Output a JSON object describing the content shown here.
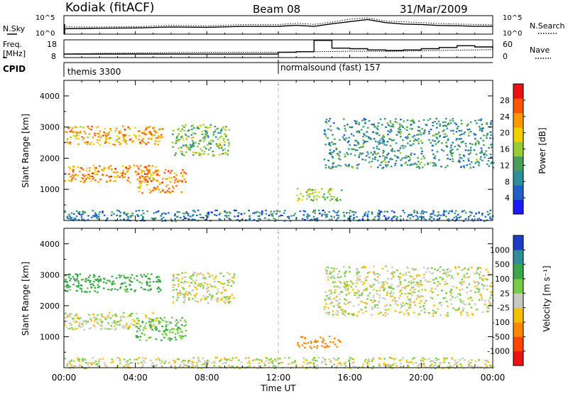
{
  "header": {
    "radar": "Kodiak (fitACF)",
    "beam": "Beam 08",
    "date": "31/Mar/2009"
  },
  "noise_panel": {
    "left_label": "N.Sky",
    "right_label": "N.Search",
    "left_ticks": [
      "10^5",
      "10^0"
    ],
    "right_ticks": [
      "10^5",
      "10^0"
    ]
  },
  "freq_panel": {
    "left_label_1": "Freq.",
    "left_label_2": "[MHz]",
    "right_label": "Nave",
    "left_ticks": [
      "18",
      "8"
    ],
    "right_ticks": [
      "60",
      "0"
    ]
  },
  "cpid": {
    "label": "CPID",
    "segments": [
      {
        "name": "themis 3300",
        "start_hour": 0
      },
      {
        "name": "normalsound (fast) 157",
        "start_hour": 12
      }
    ]
  },
  "time_axis": {
    "label": "Time UT",
    "ticks": [
      "00:00",
      "04:00",
      "08:00",
      "12:00",
      "16:00",
      "20:00",
      "00:00"
    ]
  },
  "range_axis": {
    "label": "Slant Range [km]",
    "ticks": [
      "1000",
      "2000",
      "3000",
      "4000"
    ]
  },
  "power_colorbar": {
    "label": "Power [dB]",
    "ticks": [
      "4",
      "8",
      "12",
      "16",
      "20",
      "24",
      "28"
    ],
    "colors": [
      "#1a1aff",
      "#2060c8",
      "#2e8f9a",
      "#4a9e5a",
      "#99cc33",
      "#f0d000",
      "#ff9900",
      "#ff5500",
      "#ee1111"
    ]
  },
  "velocity_colorbar": {
    "label": "Velocity [m s⁻¹]",
    "ticks": [
      "1000",
      "500",
      "100",
      "25",
      "-25",
      "-100",
      "-500",
      "-1000"
    ],
    "colors": [
      "#1a3cc8",
      "#2e8f9a",
      "#3aa84a",
      "#77cc44",
      "#c8c8c0",
      "#f5c000",
      "#ff8800",
      "#ff4400",
      "#ee1111"
    ]
  },
  "chart_data": {
    "type": "heatmap",
    "x_unit": "hours UT",
    "xlim": [
      0,
      24
    ],
    "ylim": [
      0,
      4500
    ],
    "noise_sky_trace": [
      [
        0,
        1.0
      ],
      [
        2,
        1.0
      ],
      [
        4,
        1.0
      ],
      [
        6,
        1.2
      ],
      [
        8,
        1.2
      ],
      [
        10,
        1.3
      ],
      [
        12,
        1.3
      ],
      [
        13,
        1.5
      ],
      [
        14,
        1.4
      ],
      [
        15,
        1.8
      ],
      [
        16,
        2.2
      ],
      [
        17,
        2.6
      ],
      [
        18,
        2.0
      ],
      [
        19,
        1.8
      ],
      [
        20,
        1.6
      ],
      [
        21,
        1.5
      ],
      [
        22,
        1.5
      ],
      [
        23,
        1.4
      ],
      [
        24,
        1.4
      ]
    ],
    "frequency_trace_mhz": [
      [
        0,
        10.0
      ],
      [
        2,
        10.4
      ],
      [
        4,
        10.6
      ],
      [
        6,
        10.8
      ],
      [
        8,
        11.0
      ],
      [
        10,
        11.0
      ],
      [
        12,
        11.0
      ],
      [
        14,
        11.3
      ],
      [
        16,
        11.6
      ],
      [
        18,
        11.5
      ],
      [
        20,
        11.8
      ],
      [
        22,
        12.2
      ],
      [
        24,
        12.5
      ]
    ],
    "nave_trace": [
      [
        0,
        12
      ],
      [
        10,
        12
      ],
      [
        12,
        18
      ],
      [
        13,
        20
      ],
      [
        14,
        58
      ],
      [
        15,
        32
      ],
      [
        16,
        30
      ],
      [
        17,
        26
      ],
      [
        18,
        24
      ],
      [
        19,
        26
      ],
      [
        20,
        30
      ],
      [
        21,
        34
      ],
      [
        22,
        40
      ],
      [
        23,
        36
      ],
      [
        24,
        30
      ]
    ],
    "power_patches": [
      {
        "t": [
          0.0,
          5.2
        ],
        "range": [
          1250,
          1800
        ],
        "power_db": 24
      },
      {
        "t": [
          0.0,
          5.5
        ],
        "range": [
          2450,
          3050
        ],
        "power_db": 22
      },
      {
        "t": [
          4.0,
          6.8
        ],
        "range": [
          900,
          1650
        ],
        "power_db": 24
      },
      {
        "t": [
          6.0,
          9.2
        ],
        "range": [
          2100,
          3100
        ],
        "power_db": 14
      },
      {
        "t": [
          13.0,
          15.5
        ],
        "range": [
          650,
          1050
        ],
        "power_db": 16
      },
      {
        "t": [
          14.5,
          24.0
        ],
        "range": [
          1700,
          3300
        ],
        "power_db": 10
      },
      {
        "t": [
          0.0,
          24.0
        ],
        "range": [
          0,
          350
        ],
        "power_db": 8
      }
    ],
    "velocity_patches": [
      {
        "t": [
          0.0,
          5.5
        ],
        "range": [
          2450,
          3050
        ],
        "velocity": 150
      },
      {
        "t": [
          0.0,
          5.2
        ],
        "range": [
          1250,
          1800
        ],
        "velocity": 0
      },
      {
        "t": [
          4.0,
          6.8
        ],
        "range": [
          900,
          1650
        ],
        "velocity": 80
      },
      {
        "t": [
          6.0,
          9.5
        ],
        "range": [
          2100,
          3100
        ],
        "velocity": 0
      },
      {
        "t": [
          13.0,
          15.5
        ],
        "range": [
          650,
          1050
        ],
        "velocity": -200
      },
      {
        "t": [
          14.5,
          24.0
        ],
        "range": [
          1700,
          3300
        ],
        "velocity": 0
      },
      {
        "t": [
          0.0,
          24.0
        ],
        "range": [
          0,
          350
        ],
        "velocity": 0
      }
    ]
  }
}
